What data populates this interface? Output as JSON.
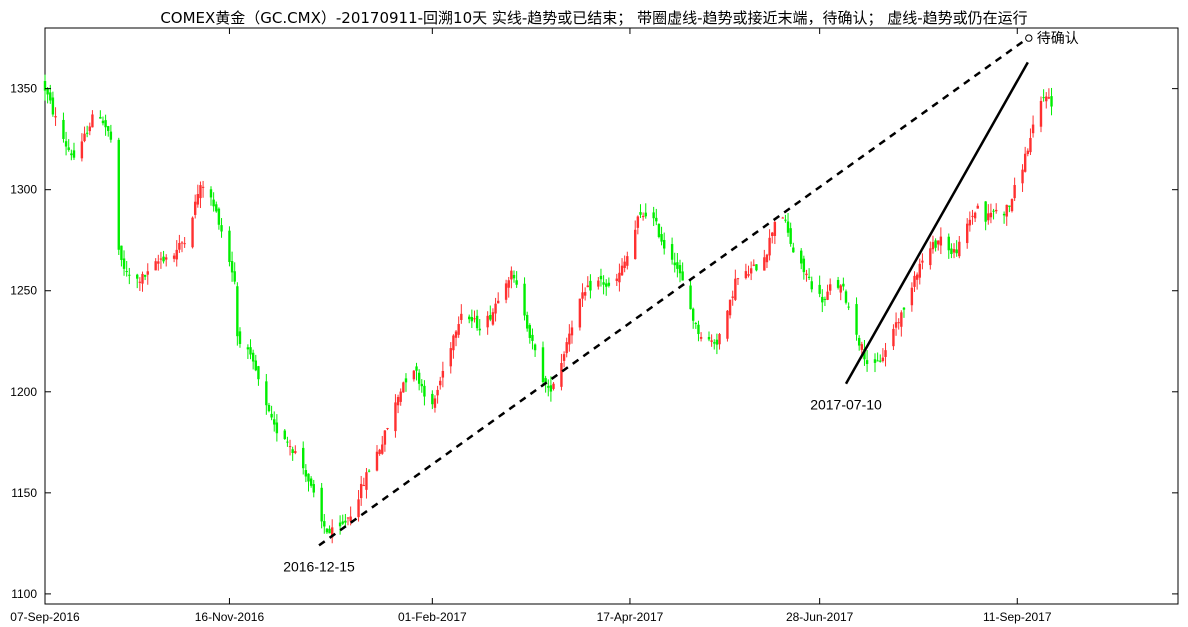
{
  "chart_data": {
    "type": "candlestick",
    "title": "COMEX黄金（GC.CMX）-20170911-回溯10天  实线-趋势或已结束；  带圈虚线-趋势或接近末端，待确认；  虚线-趋势或仍在运行",
    "xlabel": "",
    "ylabel": "",
    "ylim": [
      1095,
      1380
    ],
    "y_ticks": [
      1100,
      1150,
      1200,
      1250,
      1300,
      1350
    ],
    "x_ticks": [
      "07-Sep-2016",
      "16-Nov-2016",
      "01-Feb-2017",
      "17-Apr-2017",
      "28-Jun-2017",
      "11-Sep-2017"
    ],
    "x_tick_days": [
      0,
      70,
      147,
      222,
      294,
      369
    ],
    "xlim_days": [
      0,
      430
    ],
    "grid": false,
    "colors": {
      "up": "#ff3030",
      "down": "#00ee00",
      "trend": "#000000"
    },
    "close_series": [
      {
        "day": 0,
        "close": 1350
      },
      {
        "day": 4,
        "close": 1335
      },
      {
        "day": 8,
        "close": 1322
      },
      {
        "day": 12,
        "close": 1314
      },
      {
        "day": 16,
        "close": 1330
      },
      {
        "day": 20,
        "close": 1340
      },
      {
        "day": 24,
        "close": 1328
      },
      {
        "day": 27,
        "close": 1318
      },
      {
        "day": 28,
        "close": 1268
      },
      {
        "day": 31,
        "close": 1258
      },
      {
        "day": 35,
        "close": 1255
      },
      {
        "day": 39,
        "close": 1258
      },
      {
        "day": 44,
        "close": 1266
      },
      {
        "day": 49,
        "close": 1268
      },
      {
        "day": 54,
        "close": 1278
      },
      {
        "day": 58,
        "close": 1298
      },
      {
        "day": 61,
        "close": 1305
      },
      {
        "day": 63,
        "close": 1295
      },
      {
        "day": 66,
        "close": 1285
      },
      {
        "day": 69,
        "close": 1270
      },
      {
        "day": 72,
        "close": 1255
      },
      {
        "day": 73,
        "close": 1228
      },
      {
        "day": 76,
        "close": 1222
      },
      {
        "day": 80,
        "close": 1210
      },
      {
        "day": 83,
        "close": 1195
      },
      {
        "day": 87,
        "close": 1182
      },
      {
        "day": 91,
        "close": 1178
      },
      {
        "day": 95,
        "close": 1170
      },
      {
        "day": 99,
        "close": 1160
      },
      {
        "day": 102,
        "close": 1148
      },
      {
        "day": 105,
        "close": 1135
      },
      {
        "day": 108,
        "close": 1130
      },
      {
        "day": 112,
        "close": 1132
      },
      {
        "day": 116,
        "close": 1140
      },
      {
        "day": 120,
        "close": 1152
      },
      {
        "day": 124,
        "close": 1165
      },
      {
        "day": 128,
        "close": 1175
      },
      {
        "day": 132,
        "close": 1190
      },
      {
        "day": 136,
        "close": 1205
      },
      {
        "day": 140,
        "close": 1212
      },
      {
        "day": 144,
        "close": 1200
      },
      {
        "day": 147,
        "close": 1192
      },
      {
        "day": 151,
        "close": 1210
      },
      {
        "day": 155,
        "close": 1228
      },
      {
        "day": 158,
        "close": 1240
      },
      {
        "day": 162,
        "close": 1235
      },
      {
        "day": 166,
        "close": 1232
      },
      {
        "day": 170,
        "close": 1240
      },
      {
        "day": 174,
        "close": 1255
      },
      {
        "day": 177,
        "close": 1258
      },
      {
        "day": 181,
        "close": 1245
      },
      {
        "day": 184,
        "close": 1228
      },
      {
        "day": 188,
        "close": 1210
      },
      {
        "day": 191,
        "close": 1200
      },
      {
        "day": 195,
        "close": 1210
      },
      {
        "day": 199,
        "close": 1230
      },
      {
        "day": 203,
        "close": 1245
      },
      {
        "day": 207,
        "close": 1252
      },
      {
        "day": 211,
        "close": 1255
      },
      {
        "day": 215,
        "close": 1250
      },
      {
        "day": 218,
        "close": 1258
      },
      {
        "day": 222,
        "close": 1270
      },
      {
        "day": 225,
        "close": 1285
      },
      {
        "day": 229,
        "close": 1290
      },
      {
        "day": 232,
        "close": 1282
      },
      {
        "day": 235,
        "close": 1272
      },
      {
        "day": 239,
        "close": 1265
      },
      {
        "day": 243,
        "close": 1250
      },
      {
        "day": 247,
        "close": 1232
      },
      {
        "day": 251,
        "close": 1225
      },
      {
        "day": 255,
        "close": 1225
      },
      {
        "day": 259,
        "close": 1238
      },
      {
        "day": 262,
        "close": 1255
      },
      {
        "day": 266,
        "close": 1258
      },
      {
        "day": 270,
        "close": 1262
      },
      {
        "day": 274,
        "close": 1270
      },
      {
        "day": 277,
        "close": 1285
      },
      {
        "day": 279,
        "close": 1292
      },
      {
        "day": 282,
        "close": 1278
      },
      {
        "day": 285,
        "close": 1265
      },
      {
        "day": 289,
        "close": 1258
      },
      {
        "day": 293,
        "close": 1248
      },
      {
        "day": 296,
        "close": 1245
      },
      {
        "day": 299,
        "close": 1255
      },
      {
        "day": 303,
        "close": 1250
      },
      {
        "day": 306,
        "close": 1238
      },
      {
        "day": 309,
        "close": 1225
      },
      {
        "day": 312,
        "close": 1215
      },
      {
        "day": 315,
        "close": 1212
      },
      {
        "day": 319,
        "close": 1220
      },
      {
        "day": 322,
        "close": 1232
      },
      {
        "day": 326,
        "close": 1240
      },
      {
        "day": 330,
        "close": 1258
      },
      {
        "day": 333,
        "close": 1265
      },
      {
        "day": 337,
        "close": 1272
      },
      {
        "day": 341,
        "close": 1278
      },
      {
        "day": 344,
        "close": 1268
      },
      {
        "day": 347,
        "close": 1272
      },
      {
        "day": 351,
        "close": 1285
      },
      {
        "day": 354,
        "close": 1292
      },
      {
        "day": 357,
        "close": 1285
      },
      {
        "day": 360,
        "close": 1290
      },
      {
        "day": 363,
        "close": 1288
      },
      {
        "day": 366,
        "close": 1292
      },
      {
        "day": 368,
        "close": 1300
      },
      {
        "day": 371,
        "close": 1312
      },
      {
        "day": 374,
        "close": 1325
      },
      {
        "day": 377,
        "close": 1340
      },
      {
        "day": 380,
        "close": 1348
      },
      {
        "day": 383,
        "close": 1338
      }
    ],
    "trendlines": [
      {
        "style": "dashed",
        "from": {
          "day": 104,
          "value": 1124
        },
        "to": {
          "day": 373,
          "value": 1375
        },
        "start_label": "2016-12-15",
        "end_label": "待确认",
        "end_marker": "circle"
      },
      {
        "style": "solid",
        "from": {
          "day": 304,
          "value": 1204
        },
        "to": {
          "day": 373,
          "value": 1363
        },
        "start_label": "2017-07-10"
      }
    ]
  }
}
